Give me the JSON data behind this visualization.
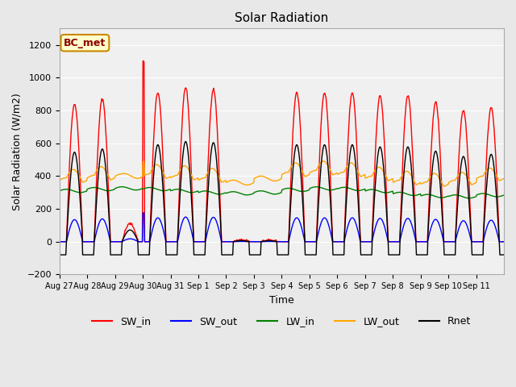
{
  "title": "Solar Radiation",
  "xlabel": "Time",
  "ylabel": "Solar Radiation (W/m2)",
  "ylim": [
    -200,
    1300
  ],
  "yticks": [
    -200,
    0,
    200,
    400,
    600,
    800,
    1000,
    1200
  ],
  "annotation": "BC_met",
  "bg_color": "#e8e8e8",
  "plot_bg": "#f0f0f0",
  "legend_entries": [
    "SW_in",
    "SW_out",
    "LW_in",
    "LW_out",
    "Rnet"
  ],
  "line_colors": {
    "SW_in": "red",
    "SW_out": "blue",
    "LW_in": "green",
    "LW_out": "orange",
    "Rnet": "black"
  },
  "tick_labels": [
    "Aug 27",
    "Aug 28",
    "Aug 29",
    "Aug 30",
    "Aug 31",
    "Sep 1",
    "Sep 2",
    "Sep 3",
    "Sep 4",
    "Sep 5",
    "Sep 6",
    "Sep 7",
    "Sep 8",
    "Sep 9",
    "Sep 10",
    "Sep 11"
  ],
  "sw_in_peaks": [
    840,
    870,
    110,
    910,
    940,
    930,
    10,
    10,
    910,
    910,
    910,
    890,
    890,
    850,
    800,
    820
  ],
  "n_days": 16
}
